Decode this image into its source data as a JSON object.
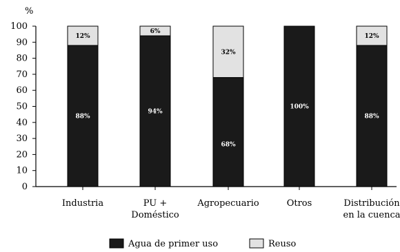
{
  "chart_data": {
    "type": "bar",
    "stacked": true,
    "y_unit_label": "%",
    "ylim": [
      0,
      100
    ],
    "y_ticks": [
      0,
      10,
      20,
      30,
      40,
      50,
      60,
      70,
      80,
      90,
      100
    ],
    "grid": false,
    "legend_position": "bottom",
    "categories": [
      [
        "Industria"
      ],
      [
        "PU +",
        "Doméstico"
      ],
      [
        "Agropecuario"
      ],
      [
        "Otros"
      ],
      [
        "Distribución",
        "en la cuenca"
      ]
    ],
    "series": [
      {
        "name": "Agua de primer uso",
        "color": "#1a1a1a",
        "values": [
          88,
          94,
          68,
          100,
          88
        ],
        "labels": [
          "88%",
          "94%",
          "68%",
          "100%",
          "88%"
        ]
      },
      {
        "name": "Reuso",
        "color": "#e2e2e2",
        "values": [
          12,
          6,
          32,
          0,
          12
        ],
        "labels": [
          "12%",
          "6%",
          "32%",
          "",
          "12%"
        ]
      }
    ]
  }
}
